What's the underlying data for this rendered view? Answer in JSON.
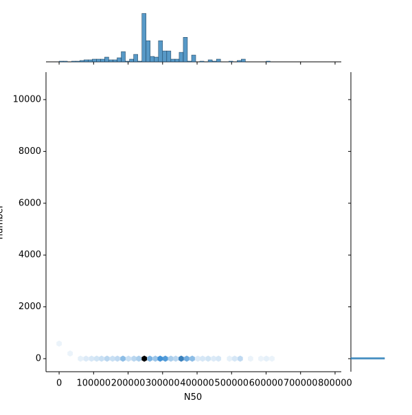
{
  "chart_data": {
    "type": "hexbin",
    "x_label": "N50",
    "y_label": "number",
    "xlim": [
      -38000,
      818000
    ],
    "ylim": [
      -504,
      11060
    ],
    "xticks": [
      0,
      100000,
      200000,
      300000,
      400000,
      500000,
      600000,
      700000,
      800000
    ],
    "yticks": [
      0,
      2000,
      4000,
      6000,
      8000,
      10000
    ],
    "color": "#1f77b4",
    "hexbins": [
      {
        "x": 0,
        "y": 580,
        "count": 3
      },
      {
        "x": 32000,
        "y": 200,
        "count": 3
      },
      {
        "x": 62000,
        "y": 0,
        "count": 5
      },
      {
        "x": 78000,
        "y": 0,
        "count": 8
      },
      {
        "x": 94000,
        "y": 0,
        "count": 10
      },
      {
        "x": 109000,
        "y": 0,
        "count": 12
      },
      {
        "x": 123000,
        "y": 0,
        "count": 15
      },
      {
        "x": 139000,
        "y": 0,
        "count": 20
      },
      {
        "x": 155000,
        "y": 0,
        "count": 15
      },
      {
        "x": 169000,
        "y": 0,
        "count": 18
      },
      {
        "x": 185000,
        "y": 0,
        "count": 35
      },
      {
        "x": 201000,
        "y": 0,
        "count": 15
      },
      {
        "x": 217000,
        "y": 0,
        "count": 20
      },
      {
        "x": 231000,
        "y": 0,
        "count": 25
      },
      {
        "x": 247000,
        "y": 0,
        "count": 100
      },
      {
        "x": 263000,
        "y": 0,
        "count": 40
      },
      {
        "x": 279000,
        "y": 0,
        "count": 30
      },
      {
        "x": 293000,
        "y": 0,
        "count": 60
      },
      {
        "x": 308000,
        "y": 0,
        "count": 55
      },
      {
        "x": 324000,
        "y": 0,
        "count": 25
      },
      {
        "x": 338000,
        "y": 0,
        "count": 20
      },
      {
        "x": 354000,
        "y": 0,
        "count": 65
      },
      {
        "x": 370000,
        "y": 0,
        "count": 45
      },
      {
        "x": 386000,
        "y": 0,
        "count": 35
      },
      {
        "x": 402000,
        "y": 0,
        "count": 8
      },
      {
        "x": 416000,
        "y": 0,
        "count": 10
      },
      {
        "x": 432000,
        "y": 0,
        "count": 12
      },
      {
        "x": 448000,
        "y": 0,
        "count": 8
      },
      {
        "x": 462000,
        "y": 0,
        "count": 10
      },
      {
        "x": 494000,
        "y": 0,
        "count": 5
      },
      {
        "x": 509000,
        "y": 0,
        "count": 10
      },
      {
        "x": 525000,
        "y": 0,
        "count": 18
      },
      {
        "x": 555000,
        "y": 0,
        "count": 3
      },
      {
        "x": 585000,
        "y": 0,
        "count": 3
      },
      {
        "x": 601000,
        "y": 0,
        "count": 5
      },
      {
        "x": 617000,
        "y": 0,
        "count": 3
      }
    ],
    "x_hist": {
      "bins": [
        0,
        12000,
        24000,
        36000,
        48000,
        60000,
        72000,
        84000,
        96000,
        108000,
        120000,
        132000,
        144000,
        156000,
        168000,
        180000,
        192000,
        204000,
        216000,
        228000,
        240000,
        252000,
        264000,
        276000,
        288000,
        300000,
        312000,
        324000,
        336000,
        348000,
        360000,
        372000,
        384000,
        396000,
        408000,
        420000,
        432000,
        444000,
        456000,
        468000,
        480000,
        492000,
        504000,
        516000,
        528000,
        540000,
        552000,
        564000,
        576000,
        588000,
        600000,
        612000,
        624000,
        636000,
        648000,
        660000,
        672000,
        684000,
        696000,
        708000,
        720000,
        732000,
        744000,
        756000,
        768000,
        780000,
        792000,
        804000
      ],
      "counts": [
        1,
        1,
        0,
        1,
        1,
        2,
        3,
        3,
        4,
        4,
        4,
        7,
        3,
        3,
        6,
        15,
        1,
        4,
        11,
        1,
        71,
        31,
        8,
        7,
        31,
        16,
        16,
        4,
        4,
        14,
        36,
        1,
        10,
        0,
        1,
        0,
        3,
        1,
        4,
        0,
        0,
        1,
        0,
        2,
        4,
        0,
        0,
        0,
        0,
        0,
        1,
        0,
        0,
        0,
        0,
        0,
        0,
        0,
        0,
        0,
        0,
        0,
        0,
        0,
        0,
        0,
        0
      ]
    },
    "y_hist": {
      "bins": [
        -20,
        40
      ],
      "counts": [
        1
      ]
    }
  }
}
